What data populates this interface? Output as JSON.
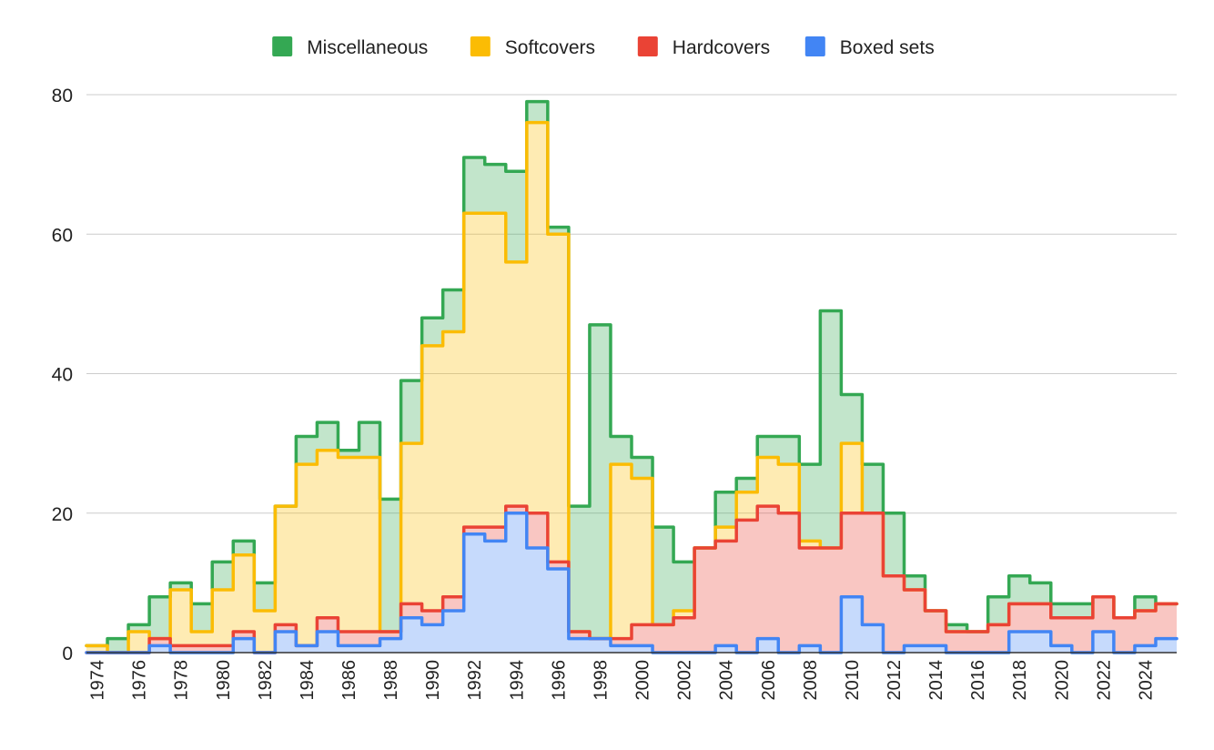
{
  "chart_data": {
    "type": "area",
    "stacked": true,
    "step": true,
    "x": [
      1974,
      1975,
      1976,
      1977,
      1978,
      1979,
      1980,
      1981,
      1982,
      1983,
      1984,
      1985,
      1986,
      1987,
      1988,
      1989,
      1990,
      1991,
      1992,
      1993,
      1994,
      1995,
      1996,
      1997,
      1998,
      1999,
      2000,
      2001,
      2002,
      2003,
      2004,
      2005,
      2006,
      2007,
      2008,
      2009,
      2010,
      2011,
      2012,
      2013,
      2014,
      2015,
      2016,
      2017,
      2018,
      2019,
      2020,
      2021,
      2022,
      2023,
      2024,
      2025
    ],
    "x_tick_labels": [
      "1974",
      "1976",
      "1978",
      "1980",
      "1982",
      "1984",
      "1986",
      "1988",
      "1990",
      "1992",
      "1994",
      "1996",
      "1998",
      "2000",
      "2002",
      "2004",
      "2006",
      "2008",
      "2010",
      "2012",
      "2014",
      "2016",
      "2018",
      "2020",
      "2022",
      "2024"
    ],
    "ylim": [
      0,
      80
    ],
    "y_tick_labels": [
      "0",
      "20",
      "40",
      "60",
      "80"
    ],
    "grid": true,
    "legend_position": "top",
    "series": [
      {
        "name": "Boxed sets",
        "color": "#4285f4",
        "values": [
          0,
          0,
          0,
          1,
          0,
          0,
          0,
          2,
          0,
          3,
          1,
          3,
          1,
          1,
          2,
          5,
          4,
          6,
          17,
          16,
          20,
          15,
          12,
          2,
          2,
          1,
          1,
          0,
          0,
          0,
          1,
          0,
          2,
          0,
          1,
          0,
          8,
          4,
          0,
          1,
          1,
          0,
          0,
          0,
          3,
          3,
          1,
          0,
          3,
          0,
          1,
          2
        ]
      },
      {
        "name": "Hardcovers",
        "color": "#ea4335",
        "values": [
          0,
          0,
          0,
          1,
          1,
          1,
          1,
          1,
          0,
          1,
          0,
          2,
          2,
          2,
          1,
          2,
          2,
          2,
          1,
          2,
          1,
          5,
          1,
          1,
          0,
          1,
          3,
          4,
          5,
          15,
          15,
          19,
          19,
          20,
          14,
          15,
          12,
          16,
          11,
          8,
          5,
          3,
          3,
          4,
          4,
          4,
          4,
          5,
          5,
          5,
          5,
          5
        ]
      },
      {
        "name": "Softcovers",
        "color": "#fbbc04",
        "values": [
          1,
          0,
          3,
          0,
          8,
          2,
          8,
          11,
          6,
          17,
          26,
          24,
          25,
          25,
          0,
          23,
          38,
          38,
          45,
          45,
          35,
          56,
          47,
          0,
          0,
          25,
          21,
          0,
          1,
          0,
          2,
          4,
          7,
          7,
          1,
          0,
          10,
          0,
          0,
          0,
          0,
          0,
          0,
          0,
          0,
          0,
          0,
          0,
          0,
          0,
          0,
          0
        ]
      },
      {
        "name": "Miscellaneous",
        "color": "#34a853",
        "values": [
          0,
          2,
          1,
          6,
          1,
          4,
          4,
          2,
          4,
          0,
          4,
          4,
          1,
          5,
          19,
          9,
          4,
          6,
          8,
          7,
          13,
          3,
          1,
          18,
          45,
          4,
          3,
          14,
          7,
          0,
          5,
          2,
          3,
          4,
          11,
          34,
          7,
          7,
          9,
          2,
          0,
          1,
          0,
          4,
          4,
          3,
          2,
          2,
          0,
          0,
          2,
          0
        ]
      }
    ],
    "legend_order": [
      "Miscellaneous",
      "Softcovers",
      "Hardcovers",
      "Boxed sets"
    ]
  }
}
